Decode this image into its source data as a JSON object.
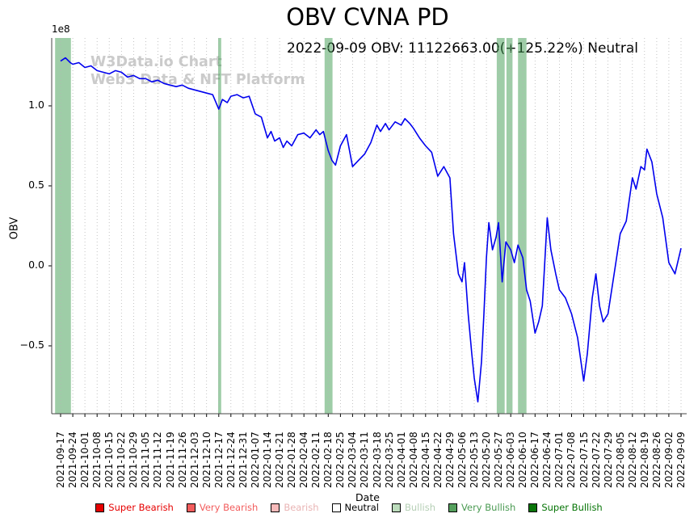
{
  "annotation": "2022-09-09 OBV: 11122663.00(+125.22%) Neutral",
  "watermark": {
    "line1": "W3Data.io Chart",
    "line2": "Web3 Data & NFT Platform"
  },
  "chart_data": {
    "type": "line",
    "title": "OBV CVNA PD",
    "xlabel": "Date",
    "ylabel": "OBV",
    "y_offset_label": "1e8",
    "y_scale_note": "y values are in units of 1e8",
    "ylim": [
      -0.92,
      1.42
    ],
    "grid": "vertical dotted",
    "legend_position": "bottom",
    "line_color": "#0000ee",
    "y_ticks": [
      {
        "value": 1.0,
        "label": "1.0"
      },
      {
        "value": 0.5,
        "label": "0.5"
      },
      {
        "value": 0.0,
        "label": "0.0"
      },
      {
        "value": -0.5,
        "label": "−0.5"
      }
    ],
    "x_tick_labels": [
      "2021-09-17",
      "2021-09-24",
      "2021-10-01",
      "2021-10-08",
      "2021-10-15",
      "2021-10-22",
      "2021-10-29",
      "2021-11-05",
      "2021-11-12",
      "2021-11-19",
      "2021-11-26",
      "2021-12-03",
      "2021-12-10",
      "2021-12-17",
      "2021-12-24",
      "2021-12-31",
      "2022-01-07",
      "2022-01-14",
      "2022-01-21",
      "2022-01-28",
      "2022-02-04",
      "2022-02-11",
      "2022-02-18",
      "2022-02-25",
      "2022-03-04",
      "2022-03-11",
      "2022-03-18",
      "2022-03-25",
      "2022-04-01",
      "2022-04-08",
      "2022-04-15",
      "2022-04-22",
      "2022-04-29",
      "2022-05-06",
      "2022-05-13",
      "2022-05-20",
      "2022-05-27",
      "2022-06-03",
      "2022-06-10",
      "2022-06-17",
      "2022-06-24",
      "2022-07-01",
      "2022-07-08",
      "2022-07-15",
      "2022-07-22",
      "2022-07-29",
      "2022-08-05",
      "2022-08-12",
      "2022-08-19",
      "2022-08-26",
      "2022-09-02",
      "2022-09-09"
    ],
    "series": [
      {
        "name": "OBV",
        "points": [
          [
            0,
            1.28
          ],
          [
            0.4,
            1.3
          ],
          [
            0.8,
            1.27
          ],
          [
            1,
            1.26
          ],
          [
            1.5,
            1.27
          ],
          [
            2,
            1.24
          ],
          [
            2.5,
            1.25
          ],
          [
            3,
            1.22
          ],
          [
            3.5,
            1.21
          ],
          [
            4,
            1.2
          ],
          [
            4.5,
            1.22
          ],
          [
            5,
            1.21
          ],
          [
            5.5,
            1.18
          ],
          [
            6,
            1.19
          ],
          [
            6.5,
            1.17
          ],
          [
            7,
            1.17
          ],
          [
            7.5,
            1.15
          ],
          [
            8,
            1.16
          ],
          [
            8.5,
            1.14
          ],
          [
            9,
            1.13
          ],
          [
            9.5,
            1.12
          ],
          [
            10,
            1.13
          ],
          [
            10.5,
            1.11
          ],
          [
            11,
            1.1
          ],
          [
            11.5,
            1.09
          ],
          [
            12,
            1.08
          ],
          [
            12.5,
            1.07
          ],
          [
            13,
            0.98
          ],
          [
            13.3,
            1.04
          ],
          [
            13.7,
            1.02
          ],
          [
            14,
            1.06
          ],
          [
            14.5,
            1.07
          ],
          [
            15,
            1.05
          ],
          [
            15.5,
            1.06
          ],
          [
            16,
            0.95
          ],
          [
            16.5,
            0.93
          ],
          [
            17,
            0.8
          ],
          [
            17.3,
            0.84
          ],
          [
            17.6,
            0.78
          ],
          [
            18,
            0.8
          ],
          [
            18.3,
            0.74
          ],
          [
            18.6,
            0.78
          ],
          [
            19,
            0.75
          ],
          [
            19.5,
            0.82
          ],
          [
            20,
            0.83
          ],
          [
            20.5,
            0.8
          ],
          [
            21,
            0.85
          ],
          [
            21.3,
            0.82
          ],
          [
            21.6,
            0.84
          ],
          [
            22,
            0.72
          ],
          [
            22.3,
            0.66
          ],
          [
            22.6,
            0.63
          ],
          [
            23,
            0.75
          ],
          [
            23.5,
            0.82
          ],
          [
            24,
            0.62
          ],
          [
            24.5,
            0.66
          ],
          [
            25,
            0.7
          ],
          [
            25.5,
            0.77
          ],
          [
            26,
            0.88
          ],
          [
            26.3,
            0.84
          ],
          [
            26.7,
            0.89
          ],
          [
            27,
            0.85
          ],
          [
            27.5,
            0.9
          ],
          [
            28,
            0.88
          ],
          [
            28.3,
            0.92
          ],
          [
            28.7,
            0.89
          ],
          [
            29,
            0.86
          ],
          [
            29.5,
            0.8
          ],
          [
            30,
            0.75
          ],
          [
            30.5,
            0.71
          ],
          [
            31,
            0.56
          ],
          [
            31.5,
            0.62
          ],
          [
            32,
            0.55
          ],
          [
            32.3,
            0.2
          ],
          [
            32.7,
            -0.05
          ],
          [
            33,
            -0.1
          ],
          [
            33.2,
            0.02
          ],
          [
            33.5,
            -0.3
          ],
          [
            33.8,
            -0.55
          ],
          [
            34,
            -0.7
          ],
          [
            34.3,
            -0.85
          ],
          [
            34.6,
            -0.6
          ],
          [
            34.8,
            -0.3
          ],
          [
            35,
            0.05
          ],
          [
            35.2,
            0.27
          ],
          [
            35.5,
            0.1
          ],
          [
            35.8,
            0.18
          ],
          [
            36,
            0.27
          ],
          [
            36.3,
            -0.1
          ],
          [
            36.6,
            0.15
          ],
          [
            37,
            0.1
          ],
          [
            37.3,
            0.02
          ],
          [
            37.6,
            0.13
          ],
          [
            38,
            0.05
          ],
          [
            38.3,
            -0.15
          ],
          [
            38.6,
            -0.22
          ],
          [
            39,
            -0.42
          ],
          [
            39.3,
            -0.35
          ],
          [
            39.6,
            -0.25
          ],
          [
            40,
            0.3
          ],
          [
            40.3,
            0.1
          ],
          [
            40.7,
            -0.05
          ],
          [
            41,
            -0.15
          ],
          [
            41.5,
            -0.2
          ],
          [
            42,
            -0.3
          ],
          [
            42.5,
            -0.45
          ],
          [
            43,
            -0.72
          ],
          [
            43.3,
            -0.55
          ],
          [
            43.7,
            -0.2
          ],
          [
            44,
            -0.05
          ],
          [
            44.3,
            -0.25
          ],
          [
            44.6,
            -0.35
          ],
          [
            45,
            -0.3
          ],
          [
            45.5,
            -0.05
          ],
          [
            46,
            0.2
          ],
          [
            46.5,
            0.28
          ],
          [
            47,
            0.55
          ],
          [
            47.3,
            0.48
          ],
          [
            47.7,
            0.62
          ],
          [
            48,
            0.6
          ],
          [
            48.2,
            0.73
          ],
          [
            48.6,
            0.65
          ],
          [
            49,
            0.45
          ],
          [
            49.5,
            0.3
          ],
          [
            50,
            0.02
          ],
          [
            50.5,
            -0.05
          ],
          [
            51,
            0.11
          ]
        ]
      }
    ],
    "signal_band_color": "#3d9b50",
    "signal_band_opacity": 0.5,
    "signal_bands": [
      {
        "label": "Very Bullish",
        "x_start": -0.45,
        "x_end": 0.85
      },
      {
        "label": "Very Bullish",
        "x_start": 12.95,
        "x_end": 13.2
      },
      {
        "label": "Very Bullish",
        "x_start": 21.7,
        "x_end": 22.35
      },
      {
        "label": "Very Bullish",
        "x_start": 35.85,
        "x_end": 36.5
      },
      {
        "label": "Very Bullish",
        "x_start": 36.65,
        "x_end": 37.15
      },
      {
        "label": "Very Bullish",
        "x_start": 37.6,
        "x_end": 38.3
      }
    ],
    "latest": {
      "date": "2022-09-09",
      "obv": 11122663.0,
      "change_pct": "+125.22%",
      "signal": "Neutral"
    }
  },
  "legend": {
    "items": [
      {
        "label": "Super Bearish",
        "swatch": "#e60000",
        "text_color": "#e60000"
      },
      {
        "label": "Very Bearish",
        "swatch": "#f25c5c",
        "text_color": "#f25c5c"
      },
      {
        "label": "Bearish",
        "swatch": "#f7baba",
        "text_color": "#e9b4b4"
      },
      {
        "label": "Neutral",
        "swatch": "#ffffff",
        "text_color": "#000000"
      },
      {
        "label": "Bullish",
        "swatch": "#bcdcbc",
        "text_color": "#b5cfb5"
      },
      {
        "label": "Very Bullish",
        "swatch": "#55a05d",
        "text_color": "#4a9a52"
      },
      {
        "label": "Super Bullish",
        "swatch": "#097509",
        "text_color": "#077507"
      }
    ]
  }
}
